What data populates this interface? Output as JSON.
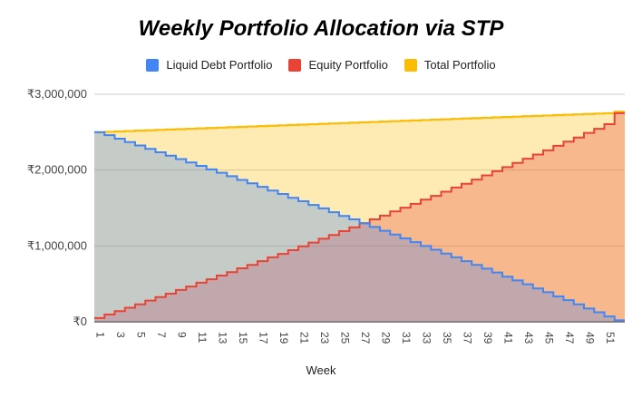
{
  "chart_data": {
    "type": "area",
    "title": "Weekly Portfolio Allocation via STP",
    "xlabel": "Week",
    "ylabel": "",
    "x": [
      1,
      2,
      3,
      4,
      5,
      6,
      7,
      8,
      9,
      10,
      11,
      12,
      13,
      14,
      15,
      16,
      17,
      18,
      19,
      20,
      21,
      22,
      23,
      24,
      25,
      26,
      27,
      28,
      29,
      30,
      31,
      32,
      33,
      34,
      35,
      36,
      37,
      38,
      39,
      40,
      41,
      42,
      43,
      44,
      45,
      46,
      47,
      48,
      49,
      50,
      51,
      52
    ],
    "x_tick_labels": [
      "1",
      "3",
      "5",
      "7",
      "9",
      "11",
      "13",
      "15",
      "17",
      "19",
      "21",
      "23",
      "25",
      "27",
      "29",
      "31",
      "33",
      "35",
      "37",
      "39",
      "41",
      "43",
      "45",
      "47",
      "49",
      "51"
    ],
    "ylim": [
      0,
      3000000
    ],
    "y_ticks": [
      0,
      1000000,
      2000000,
      3000000
    ],
    "y_tick_labels": [
      "₹0",
      "₹1,000,000",
      "₹2,000,000",
      "₹3,000,000"
    ],
    "grid": true,
    "legend_position": "top",
    "series": [
      {
        "name": "Liquid Debt Portfolio",
        "color": "#4285f4",
        "values": [
          2500000,
          2460000,
          2415000,
          2370000,
          2325000,
          2280000,
          2235000,
          2190000,
          2145000,
          2100000,
          2055000,
          2010000,
          1965000,
          1920000,
          1870000,
          1825000,
          1780000,
          1730000,
          1685000,
          1635000,
          1590000,
          1540000,
          1495000,
          1445000,
          1395000,
          1350000,
          1300000,
          1250000,
          1200000,
          1150000,
          1100000,
          1050000,
          1000000,
          950000,
          900000,
          850000,
          800000,
          750000,
          700000,
          650000,
          595000,
          545000,
          495000,
          440000,
          390000,
          335000,
          285000,
          230000,
          175000,
          125000,
          70000,
          20000
        ]
      },
      {
        "name": "Equity Portfolio",
        "color": "#ea4335",
        "values": [
          50000,
          95000,
          140000,
          185000,
          230000,
          280000,
          325000,
          370000,
          420000,
          465000,
          515000,
          560000,
          610000,
          655000,
          705000,
          750000,
          800000,
          850000,
          895000,
          945000,
          995000,
          1045000,
          1095000,
          1145000,
          1195000,
          1245000,
          1300000,
          1350000,
          1400000,
          1455000,
          1505000,
          1555000,
          1610000,
          1660000,
          1715000,
          1770000,
          1820000,
          1875000,
          1930000,
          1985000,
          2040000,
          2095000,
          2150000,
          2205000,
          2260000,
          2320000,
          2375000,
          2430000,
          2490000,
          2545000,
          2605000,
          2750000
        ]
      },
      {
        "name": "Total Portfolio",
        "color": "#fbbc04",
        "values": [
          2500000,
          2505000,
          2510000,
          2515000,
          2520000,
          2525000,
          2530000,
          2535000,
          2540000,
          2545000,
          2550000,
          2555000,
          2560000,
          2565000,
          2570000,
          2575000,
          2580000,
          2585000,
          2590000,
          2595000,
          2600000,
          2605000,
          2610000,
          2615000,
          2620000,
          2625000,
          2630000,
          2635000,
          2640000,
          2645000,
          2650000,
          2655000,
          2660000,
          2665000,
          2670000,
          2675000,
          2680000,
          2685000,
          2690000,
          2695000,
          2700000,
          2705000,
          2710000,
          2715000,
          2720000,
          2725000,
          2730000,
          2735000,
          2740000,
          2745000,
          2750000,
          2770000
        ]
      }
    ]
  }
}
